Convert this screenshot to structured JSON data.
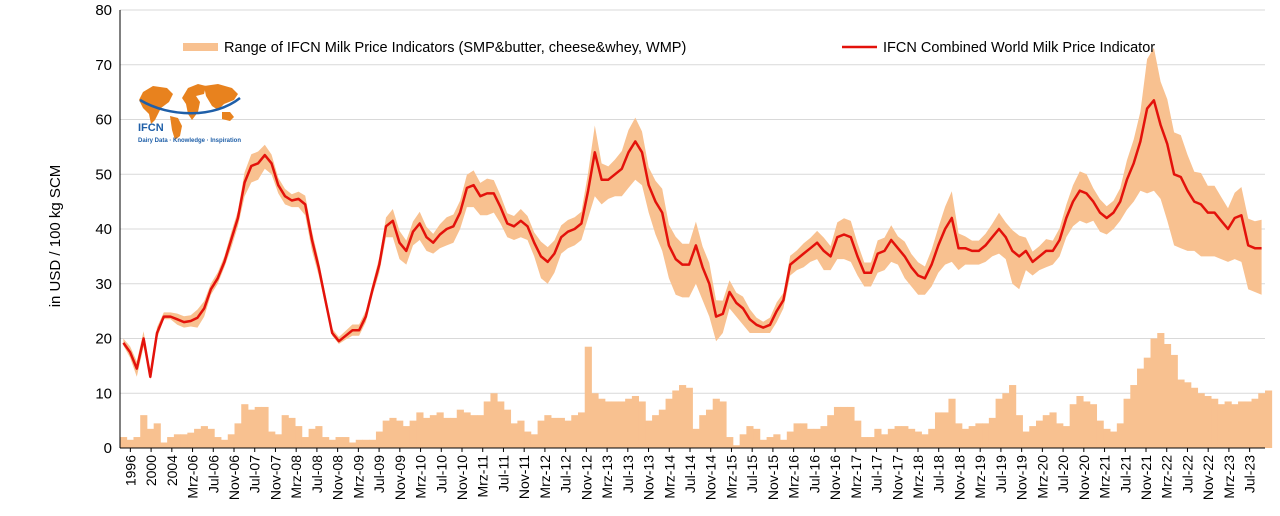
{
  "chart_data": {
    "type": "line",
    "ylabel": "in USD / 100 kg SCM",
    "ylim": [
      0,
      80
    ],
    "yticks": [
      0,
      10,
      20,
      30,
      40,
      50,
      60,
      70,
      80
    ],
    "grid": "horizontal",
    "legend": [
      "Range of IFCN Milk Price Indicators (SMP&butter, cheese&whey, WMP)",
      "IFCN Combined World Milk Price Indicator"
    ],
    "legend_placement": "top",
    "x_tick_labels": [
      "1996",
      "2000",
      "2004",
      "Mrz-06",
      "Jul-06",
      "Nov-06",
      "Jul-07",
      "Nov-07",
      "Mrz-08",
      "Jul-08",
      "Nov-08",
      "Mrz-09",
      "Jul-09",
      "Nov-09",
      "Mrz-10",
      "Jul-10",
      "Nov-10",
      "Mrz-11",
      "Jul-11",
      "Nov-11",
      "Mrz-12",
      "Jul-12",
      "Nov-12",
      "Mrz-13",
      "Jul-13",
      "Nov-13",
      "Mrz-14",
      "Jul-14",
      "Nov-14",
      "Mrz-15",
      "Jul-15",
      "Nov-15",
      "Mrz-16",
      "Jul-16",
      "Nov-16",
      "Mrz-17",
      "Jul-17",
      "Nov-17",
      "Mrz-18",
      "Jul-18",
      "Nov-18",
      "Mrz-19",
      "Jul-19",
      "Nov-19",
      "Mrz-20",
      "Jul-20",
      "Nov-20",
      "Mrz-21",
      "Jul-21",
      "Nov-21",
      "Mrz-22",
      "Jul-22",
      "Nov-22",
      "Mrz-23",
      "Jul-23"
    ],
    "series": [
      {
        "name": "IFCN Combined World Milk Price Indicator",
        "color": "#e3120b",
        "values": [
          19.2,
          17.5,
          14.5,
          20.0,
          13.0,
          21.0,
          24.0,
          24.0,
          23.5,
          23.0,
          23.2,
          23.8,
          25.5,
          29.0,
          31.0,
          34.0,
          38.0,
          42.0,
          48.5,
          51.5,
          52.0,
          53.5,
          52.0,
          48.0,
          46.0,
          45.2,
          45.5,
          44.5,
          38.0,
          33.0,
          27.0,
          21.0,
          19.5,
          20.5,
          21.5,
          21.5,
          24.0,
          29.0,
          33.5,
          40.5,
          41.5,
          37.5,
          36.0,
          39.5,
          41.0,
          38.5,
          37.5,
          39.0,
          40.0,
          40.5,
          43.0,
          47.5,
          48.0,
          46.0,
          46.5,
          46.5,
          44.0,
          41.0,
          40.5,
          41.5,
          40.5,
          37.5,
          35.0,
          34.0,
          35.5,
          38.5,
          39.5,
          40.0,
          41.0,
          47.0,
          54.0,
          49.0,
          49.0,
          50.0,
          51.0,
          54.0,
          56.0,
          54.0,
          48.0,
          45.0,
          43.0,
          37.0,
          34.5,
          33.5,
          33.5,
          37.0,
          33.0,
          30.0,
          24.0,
          24.5,
          28.5,
          26.5,
          25.5,
          23.5,
          22.5,
          22.0,
          22.5,
          25.0,
          27.0,
          33.5,
          34.5,
          35.5,
          36.5,
          37.5,
          36.0,
          35.0,
          38.5,
          39.0,
          38.5,
          35.0,
          32.0,
          32.0,
          35.5,
          36.0,
          38.0,
          36.5,
          35.0,
          33.0,
          31.5,
          31.0,
          33.5,
          37.0,
          40.0,
          42.0,
          36.5,
          36.5,
          36.0,
          36.0,
          37.0,
          38.5,
          40.0,
          38.5,
          36.0,
          35.0,
          36.0,
          34.0,
          35.0,
          36.0,
          36.0,
          38.0,
          42.0,
          45.0,
          47.0,
          46.5,
          45.0,
          43.0,
          42.0,
          43.0,
          45.0,
          49.0,
          52.0,
          56.0,
          62.0,
          63.5,
          59.0,
          55.5,
          50.0,
          49.5,
          47.0,
          45.0,
          44.5,
          43.0,
          43.0,
          41.5,
          40.0,
          42.0,
          42.5,
          37.0,
          36.5,
          36.5
        ]
      },
      {
        "name": "Range of IFCN Milk Price Indicators (SMP&butter, cheese&whey, WMP)",
        "color": "#f8c190",
        "low": [
          18.7,
          16.5,
          13.0,
          18.5,
          12.5,
          20.0,
          23.5,
          23.5,
          22.5,
          22.0,
          22.2,
          22.0,
          24.0,
          28.0,
          30.0,
          33.0,
          36.5,
          40.5,
          46.0,
          48.5,
          49.0,
          51.0,
          50.0,
          46.5,
          44.5,
          44.0,
          44.0,
          42.5,
          36.0,
          31.5,
          26.0,
          20.5,
          19.0,
          19.8,
          20.5,
          20.5,
          23.0,
          28.0,
          32.0,
          38.5,
          38.5,
          34.5,
          33.5,
          37.0,
          38.0,
          36.0,
          35.5,
          36.5,
          37.0,
          37.5,
          40.0,
          44.0,
          44.0,
          42.5,
          42.5,
          43.0,
          41.0,
          38.5,
          38.0,
          38.5,
          38.0,
          35.0,
          31.0,
          30.0,
          32.0,
          35.5,
          36.5,
          37.0,
          38.0,
          42.0,
          46.0,
          44.5,
          45.5,
          46.0,
          46.0,
          47.5,
          49.0,
          48.0,
          43.0,
          39.0,
          36.0,
          31.0,
          28.0,
          27.5,
          27.5,
          30.0,
          27.0,
          24.0,
          19.5,
          21.0,
          25.5,
          24.0,
          22.5,
          21.0,
          21.0,
          21.0,
          21.0,
          23.0,
          25.5,
          31.5,
          32.5,
          33.0,
          34.0,
          34.5,
          32.5,
          32.5,
          34.5,
          34.5,
          34.0,
          31.5,
          29.5,
          29.5,
          32.0,
          32.5,
          34.0,
          33.5,
          31.0,
          29.5,
          28.0,
          28.0,
          29.5,
          32.0,
          33.5,
          34.0,
          32.5,
          33.5,
          33.5,
          33.5,
          34.0,
          35.0,
          35.5,
          34.5,
          30.0,
          29.0,
          32.5,
          31.5,
          32.5,
          33.0,
          33.5,
          35.0,
          38.5,
          40.5,
          41.5,
          41.0,
          41.5,
          39.5,
          39.0,
          40.0,
          41.5,
          43.5,
          45.0,
          47.0,
          46.5,
          47.0,
          45.5,
          41.5,
          37.0,
          36.5,
          36.0,
          36.0,
          35.0,
          35.0,
          35.0,
          34.5,
          34.0,
          34.5,
          34.0,
          29.0,
          28.5,
          28.0
        ]
      }
    ],
    "bar_series": {
      "name": "Range of IFCN Milk Price Indicators (SMP&butter, cheese&whey, WMP)",
      "color": "#f8c190",
      "values": [
        2.0,
        1.5,
        2.0,
        6.0,
        3.5,
        4.5,
        1.0,
        2.0,
        2.5,
        2.5,
        2.8,
        3.5,
        4.0,
        3.5,
        2.0,
        1.5,
        2.5,
        4.5,
        8.0,
        7.0,
        7.5,
        7.5,
        3.0,
        2.5,
        6.0,
        5.5,
        4.0,
        2.0,
        3.5,
        4.0,
        2.0,
        1.5,
        2.0,
        2.0,
        1.0,
        1.5,
        1.5,
        1.5,
        3.0,
        5.0,
        5.5,
        5.0,
        4.0,
        5.0,
        6.5,
        5.5,
        6.0,
        6.5,
        5.5,
        5.5,
        7.0,
        6.5,
        6.0,
        6.0,
        8.5,
        10.0,
        8.5,
        7.0,
        4.5,
        5.0,
        3.0,
        2.5,
        5.0,
        6.0,
        5.5,
        5.5,
        5.0,
        6.0,
        6.5,
        18.5,
        10.0,
        9.0,
        8.5,
        8.5,
        8.5,
        9.0,
        9.5,
        8.5,
        5.0,
        6.0,
        7.0,
        9.0,
        10.5,
        11.5,
        11.0,
        3.5,
        6.0,
        7.0,
        9.0,
        8.5,
        2.0,
        0.5,
        2.5,
        4.0,
        3.5,
        1.5,
        2.0,
        2.5,
        1.5,
        3.0,
        4.5,
        4.5,
        3.5,
        3.5,
        4.0,
        6.0,
        7.5,
        7.5,
        7.5,
        5.0,
        2.0,
        2.0,
        3.5,
        2.5,
        3.5,
        4.0,
        4.0,
        3.5,
        3.0,
        2.5,
        3.5,
        6.5,
        6.5,
        9.0,
        4.5,
        3.5,
        4.0,
        4.5,
        4.5,
        5.5,
        9.0,
        10.0,
        11.5,
        6.0,
        3.0,
        4.0,
        5.0,
        6.0,
        6.5,
        4.5,
        4.0,
        8.0,
        9.5,
        8.5,
        8.0,
        5.0,
        3.5,
        3.0,
        4.5,
        9.0,
        11.5,
        14.5,
        16.5,
        20.0,
        21.0,
        19.0,
        17.0,
        12.5,
        12.0,
        11.0,
        10.0,
        9.5,
        9.0,
        8.0,
        8.5,
        8.0,
        8.5,
        8.5,
        9.0,
        10.0,
        10.5
      ]
    }
  },
  "logo": {
    "name": "IFCN",
    "tagline": "Dairy Data · Knowledge · Inspiration"
  }
}
